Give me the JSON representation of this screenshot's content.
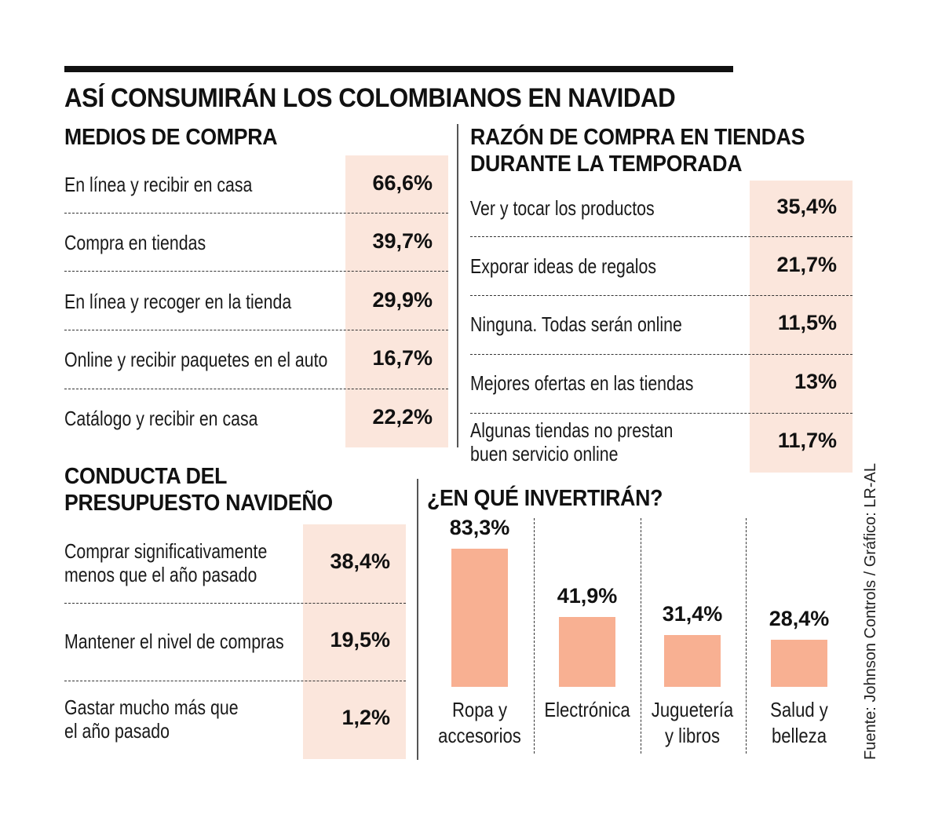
{
  "title": "ASÍ CONSUMIRÁN LOS COLOMBIANOS EN NAVIDAD",
  "source": "Fuente: Johnson Controls / Gráfico: LR-AL",
  "colors": {
    "highlight": "#fbe6dc",
    "bar": "#f8b092",
    "text": "#111111"
  },
  "medios": {
    "title": "MEDIOS DE COMPRA",
    "rows": [
      {
        "label": "En línea y recibir en casa",
        "value": "66,6%"
      },
      {
        "label": "Compra en tiendas",
        "value": "39,7%"
      },
      {
        "label": "En línea y recoger en la tienda",
        "value": "29,9%"
      },
      {
        "label": "Online y recibir paquetes en el auto",
        "value": "16,7%"
      },
      {
        "label": "Catálogo y recibir en casa",
        "value": "22,2%"
      }
    ]
  },
  "razon": {
    "title_line1": "RAZÓN DE COMPRA EN TIENDAS",
    "title_line2": "DURANTE LA TEMPORADA",
    "rows": [
      {
        "label": "Ver y tocar los productos",
        "value": "35,4%"
      },
      {
        "label": "Exporar ideas de regalos",
        "value": "21,7%"
      },
      {
        "label": "Ninguna. Todas serán online",
        "value": "11,5%"
      },
      {
        "label": "Mejores ofertas en las tiendas",
        "value": "13%"
      },
      {
        "label_line1": "Algunas tiendas no prestan",
        "label_line2": "buen servicio online",
        "value": "11,7%"
      }
    ]
  },
  "conducta": {
    "title_line1": "CONDUCTA DEL",
    "title_line2": "PRESUPUESTO NAVIDEÑO",
    "rows": [
      {
        "label_line1": "Comprar significativamente",
        "label_line2": "menos que el año pasado",
        "value": "38,4%"
      },
      {
        "label": "Mantener el nivel de compras",
        "value": "19,5%"
      },
      {
        "label_line1": "Gastar mucho más que",
        "label_line2": "el año pasado",
        "value": "1,2%"
      }
    ]
  },
  "chart_data": {
    "type": "bar",
    "title": "¿EN QUÉ INVERTIRÁN?",
    "categories": [
      "Ropa y accesorios",
      "Electrónica",
      "Juguetería y libros",
      "Salud y belleza"
    ],
    "category_lines": [
      [
        "Ropa y",
        "accesorios"
      ],
      [
        "Electrónica",
        ""
      ],
      [
        "Juguetería",
        "y libros"
      ],
      [
        "Salud y",
        "belleza"
      ]
    ],
    "values": [
      83.3,
      41.9,
      31.4,
      28.4
    ],
    "value_labels": [
      "83,3%",
      "41,9%",
      "31,4%",
      "28,4%"
    ],
    "xlabel": "",
    "ylabel": "",
    "ylim": [
      0,
      83.3
    ],
    "grid": false,
    "legend": "none"
  }
}
